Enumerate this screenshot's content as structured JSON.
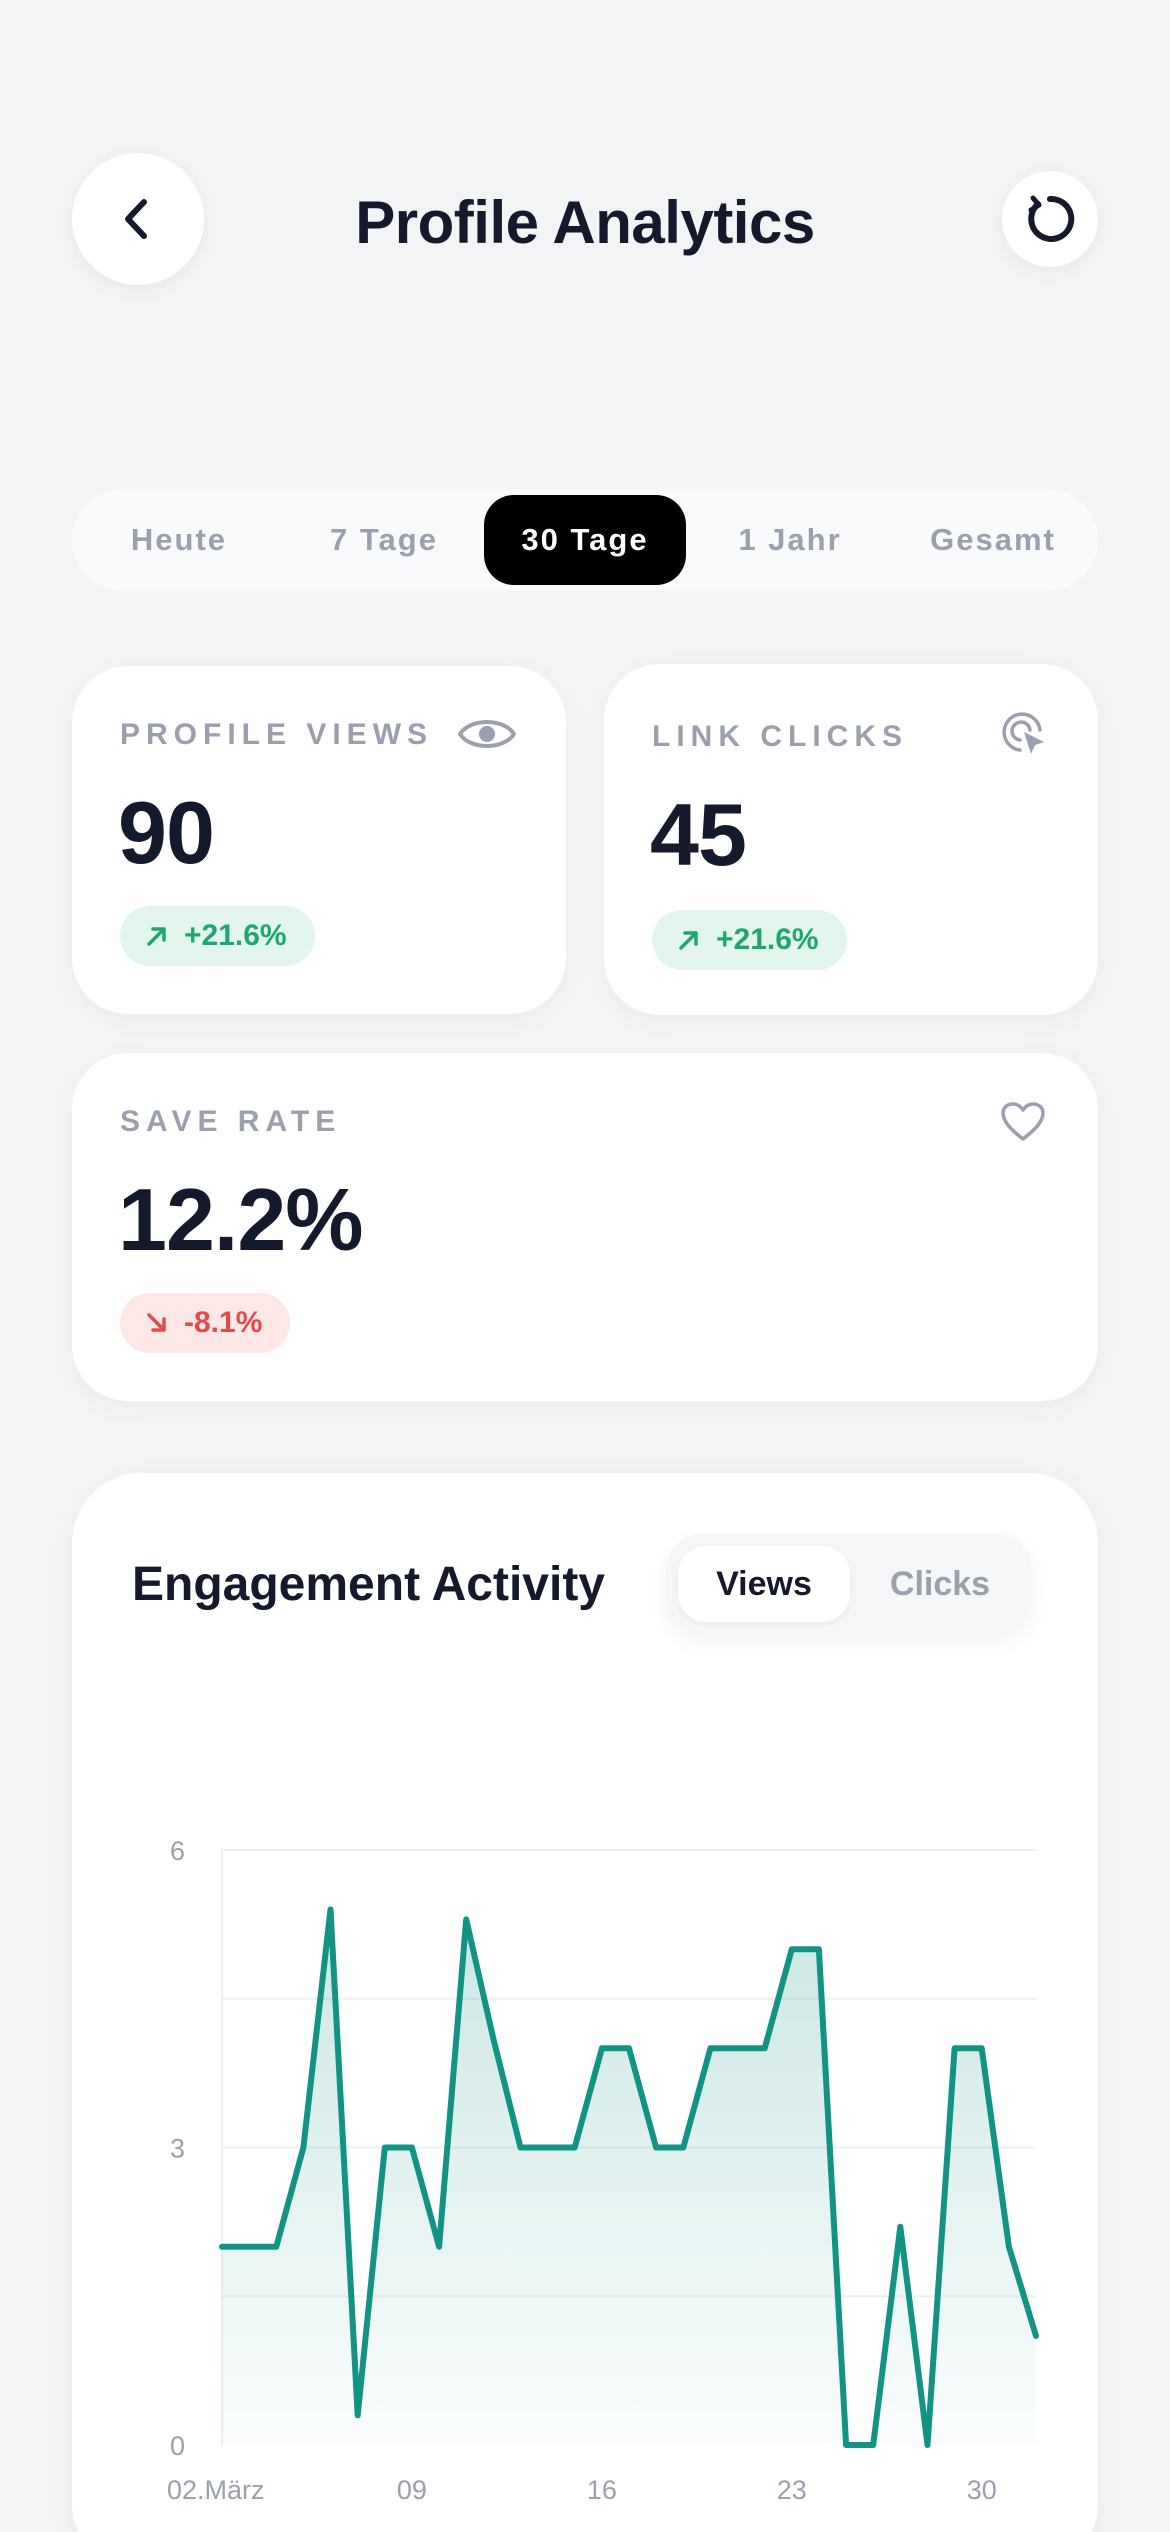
{
  "header": {
    "title": "Profile Analytics",
    "back_icon": "chevron-left-icon",
    "refresh_icon": "refresh-icon"
  },
  "periods": [
    {
      "label": "Heute",
      "active": false
    },
    {
      "label": "7 Tage",
      "active": false
    },
    {
      "label": "30 Tage",
      "active": true
    },
    {
      "label": "1 Jahr",
      "active": false
    },
    {
      "label": "Gesamt",
      "active": false
    }
  ],
  "stats": {
    "profile_views": {
      "label": "PROFILE VIEWS",
      "value": "90",
      "change": "+21.6%",
      "trend": "up",
      "icon": "eye-icon"
    },
    "link_clicks": {
      "label": "LINK CLICKS",
      "value": "45",
      "change": "+21.6%",
      "trend": "up",
      "icon": "cursor-click-icon"
    },
    "save_rate": {
      "label": "SAVE RATE",
      "value": "12.2%",
      "change": "-8.1%",
      "trend": "down",
      "icon": "heart-icon"
    }
  },
  "engagement": {
    "title": "Engagement Activity",
    "toggle": {
      "views_label": "Views",
      "clicks_label": "Clicks",
      "active": "Views"
    }
  },
  "colors": {
    "accent": "#129384",
    "positive": "#1ea66f",
    "negative": "#e34a4a",
    "active_tab": "#000000"
  },
  "chart_data": {
    "type": "area",
    "series": [
      {
        "values": [
          2,
          2,
          2,
          3,
          5.4,
          0.3,
          3,
          3,
          2,
          5.3,
          4.1,
          3,
          3,
          3,
          4,
          4,
          3,
          3,
          4,
          4,
          4,
          5,
          5,
          0,
          0,
          2.2,
          0,
          4,
          4,
          2,
          1.1
        ]
      }
    ],
    "x_ticks": [
      {
        "label": "02.März",
        "index": 0
      },
      {
        "label": "09",
        "index": 7
      },
      {
        "label": "16",
        "index": 14
      },
      {
        "label": "23",
        "index": 21
      },
      {
        "label": "30",
        "index": 28
      }
    ],
    "ylim": [
      0,
      6
    ],
    "y_ticks": [
      0,
      3,
      6
    ],
    "grid": true
  }
}
